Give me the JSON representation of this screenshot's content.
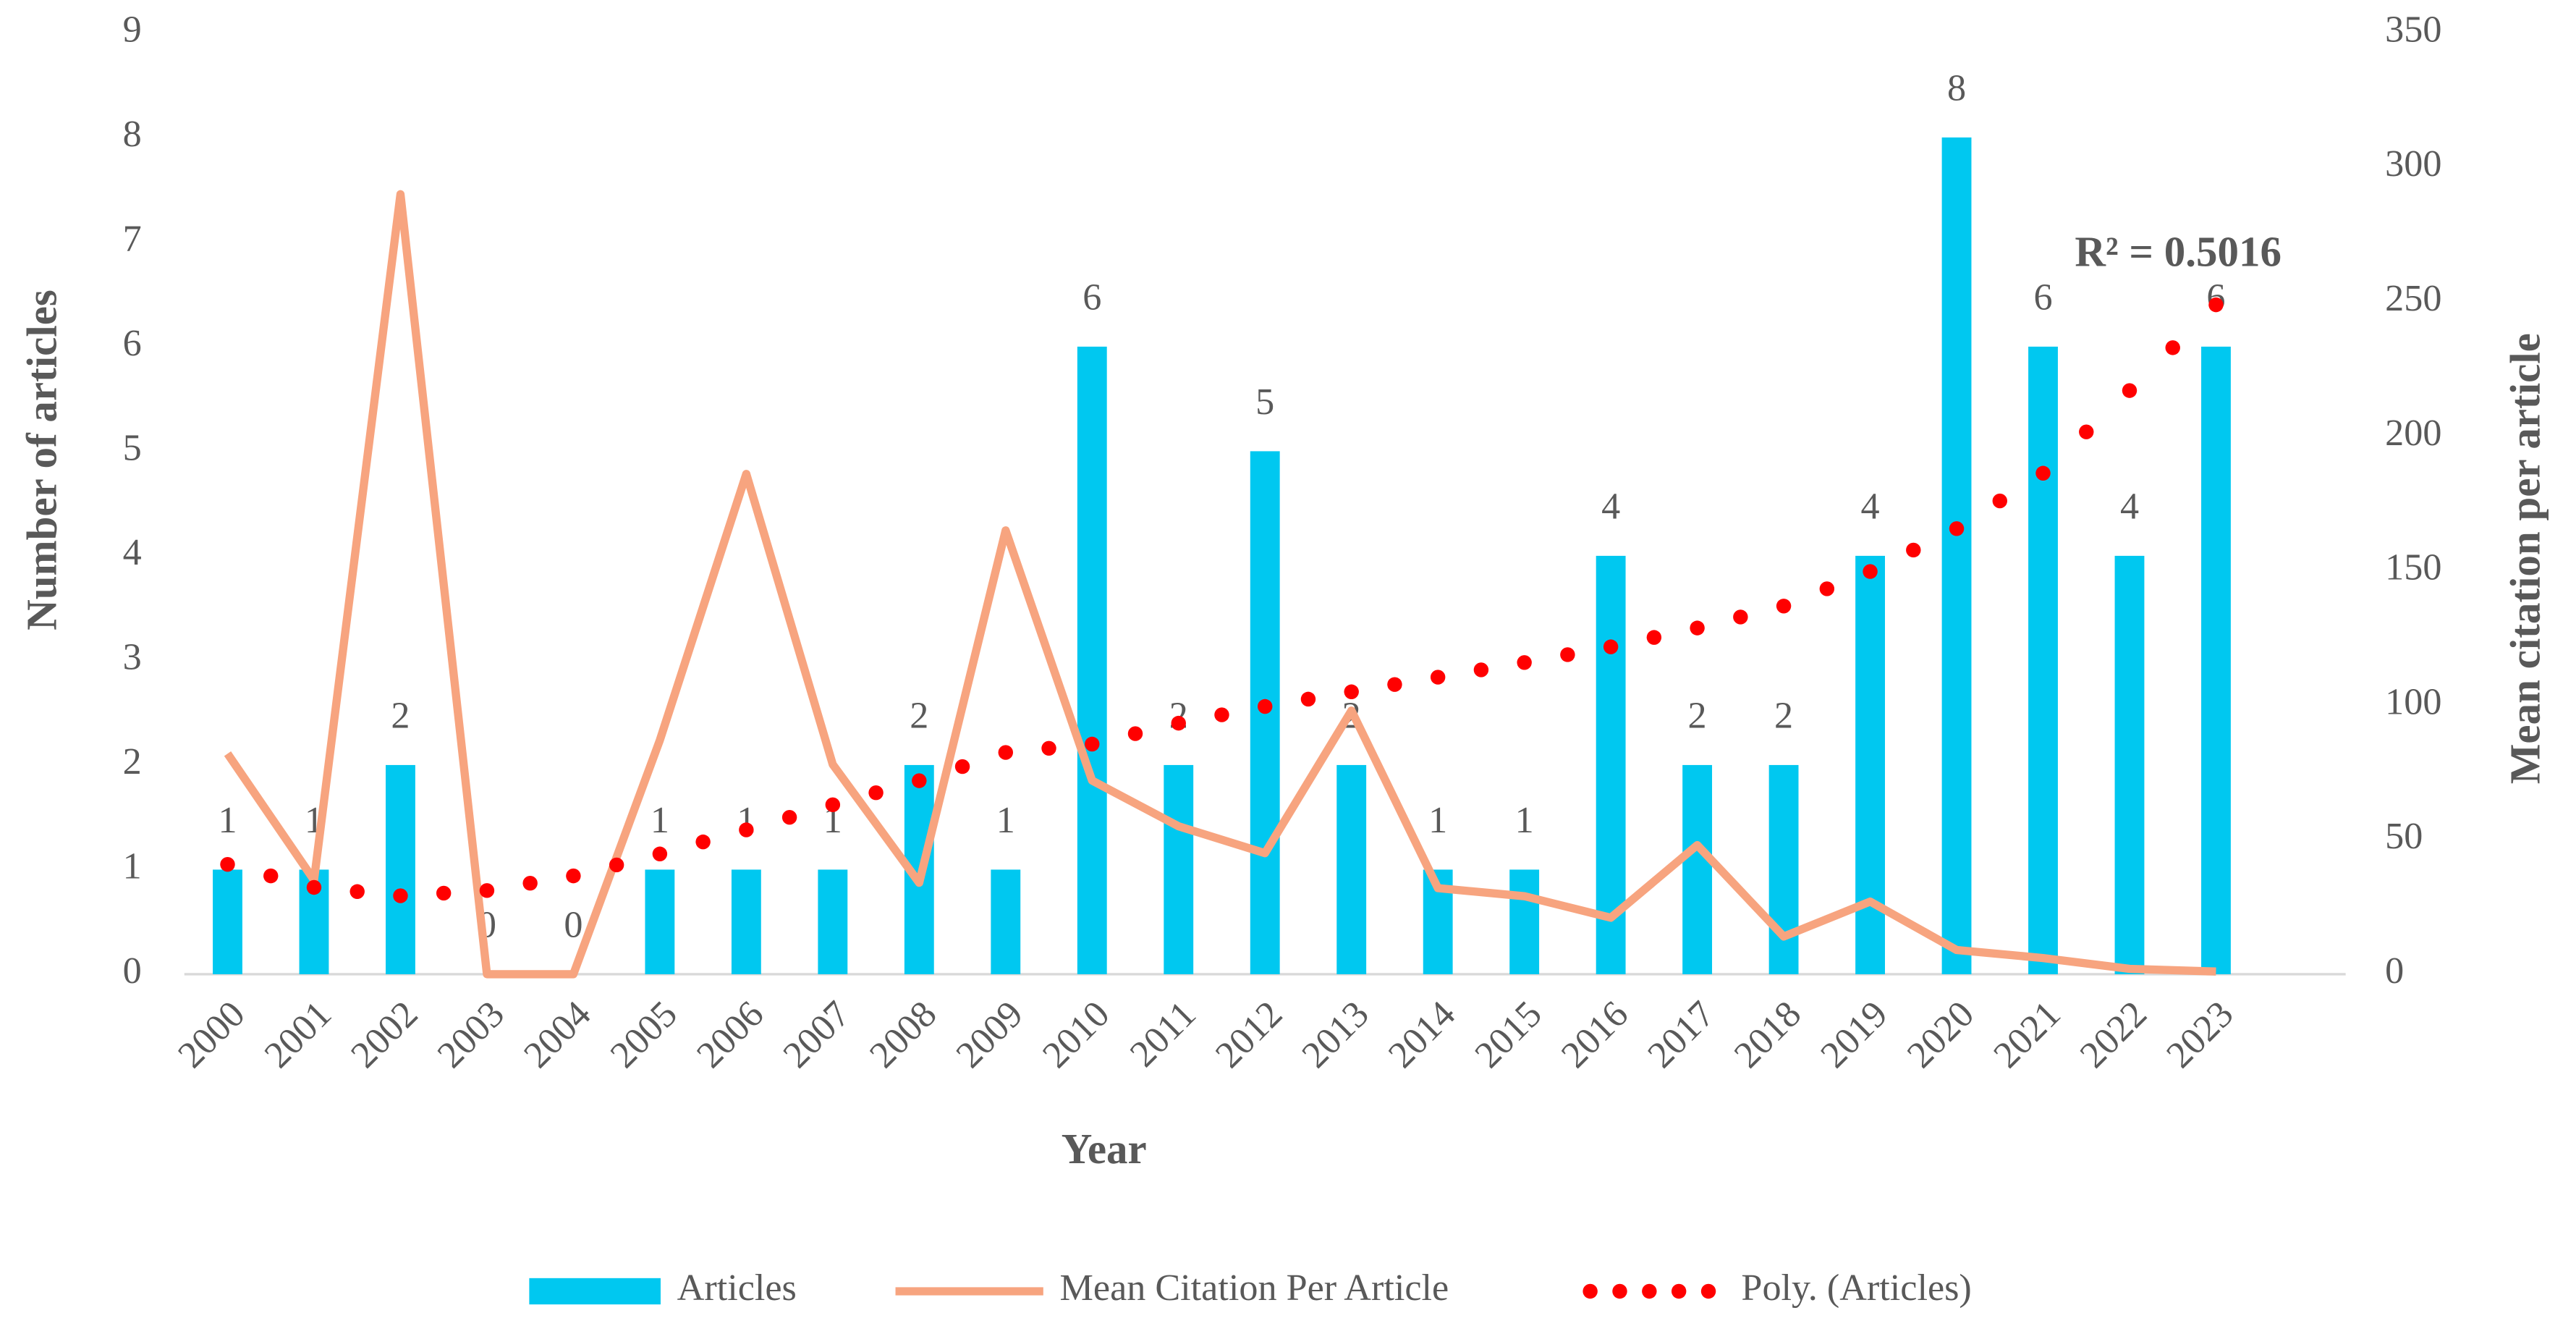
{
  "chart_data": {
    "type": "bar",
    "x_label": "Year",
    "y_label": "Number of articles",
    "y2_label": "Mean citation per article",
    "annotation": "R² = 0.5016",
    "categories": [
      "2000",
      "2001",
      "2002",
      "2003",
      "2004",
      "2005",
      "2006",
      "2007",
      "2008",
      "2009",
      "2010",
      "2011",
      "2012",
      "2013",
      "2014",
      "2015",
      "2016",
      "2017",
      "2018",
      "2019",
      "2020",
      "2021",
      "2022",
      "2023"
    ],
    "series": [
      {
        "name": "Articles",
        "type": "bar",
        "color": "#00c8f0",
        "values": [
          1,
          1,
          2,
          0,
          0,
          1,
          1,
          1,
          2,
          1,
          6,
          2,
          5,
          2,
          1,
          1,
          4,
          2,
          2,
          4,
          8,
          6,
          4,
          6
        ]
      },
      {
        "name": "Mean Citation Per Article",
        "type": "line",
        "axis": "y2",
        "color": "#f7a47f",
        "values": [
          82,
          35,
          290,
          0,
          0,
          87,
          186,
          78,
          34,
          165,
          72,
          55,
          45,
          98,
          32,
          29,
          21,
          48,
          14,
          27,
          9,
          6,
          2,
          1
        ]
      },
      {
        "name": "Poly. (Articles)",
        "type": "dotted-line",
        "color": "#ff0000",
        "values": [
          1.05,
          0.83,
          0.75,
          0.8,
          0.94,
          1.15,
          1.38,
          1.62,
          1.85,
          2.12,
          2.2,
          2.4,
          2.56,
          2.7,
          2.84,
          2.98,
          3.13,
          3.31,
          3.52,
          3.85,
          4.26,
          4.79,
          5.58,
          6.4
        ]
      }
    ],
    "ylim": [
      0,
      9
    ],
    "yticks": [
      0,
      1,
      2,
      3,
      4,
      5,
      6,
      7,
      8,
      9
    ],
    "y2lim": [
      0,
      350
    ],
    "y2ticks": [
      0,
      50,
      100,
      150,
      200,
      250,
      300,
      350
    ],
    "legend": "bottom"
  }
}
